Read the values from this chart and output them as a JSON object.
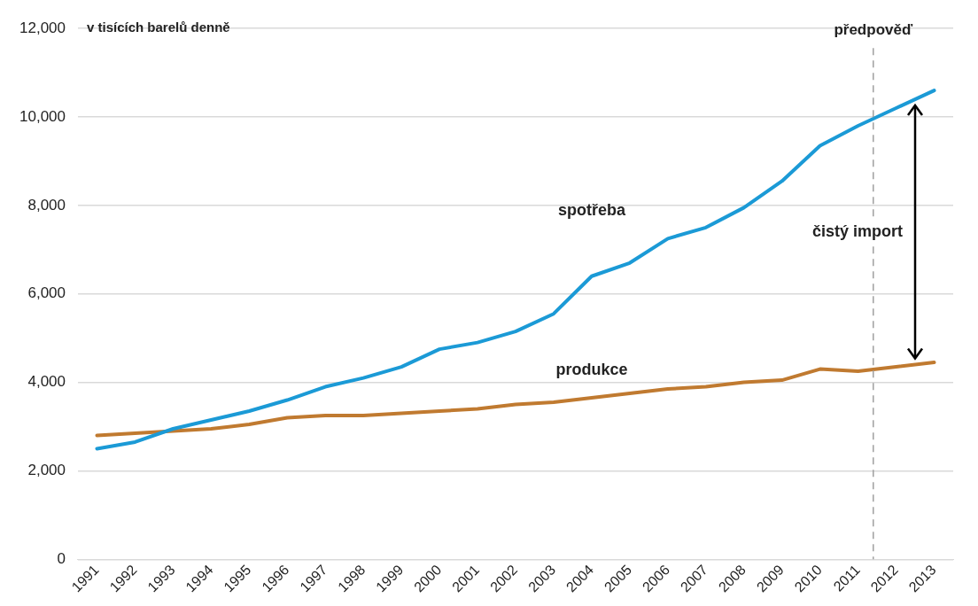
{
  "chart_data": {
    "type": "line",
    "ylabel": "v tisících barelů denně",
    "x": [
      1991,
      1992,
      1993,
      1994,
      1995,
      1996,
      1997,
      1998,
      1999,
      2000,
      2001,
      2002,
      2003,
      2004,
      2005,
      2006,
      2007,
      2008,
      2009,
      2010,
      2011,
      2012,
      2013
    ],
    "series": [
      {
        "name": "spotřeba",
        "color": "#1b9ad6",
        "values": [
          2500,
          2650,
          2950,
          3150,
          3350,
          3600,
          3900,
          4100,
          4350,
          4750,
          4900,
          5150,
          5550,
          6400,
          6700,
          7250,
          7500,
          7950,
          8550,
          9350,
          9800,
          10200,
          10600
        ]
      },
      {
        "name": "produkce",
        "color": "#c07a30",
        "values": [
          2800,
          2850,
          2900,
          2950,
          3050,
          3200,
          3250,
          3250,
          3300,
          3350,
          3400,
          3500,
          3550,
          3650,
          3750,
          3850,
          3900,
          4000,
          4050,
          4300,
          4250,
          4350,
          4450
        ]
      }
    ],
    "xlim": [
      1990.5,
      2013.5
    ],
    "xticks": [
      1991,
      1992,
      1993,
      1994,
      1995,
      1996,
      1997,
      1998,
      1999,
      2000,
      2001,
      2002,
      2003,
      2004,
      2005,
      2006,
      2007,
      2008,
      2009,
      2010,
      2011,
      2012,
      2013
    ],
    "ylim": [
      0,
      12000
    ],
    "yticks": [
      {
        "value": 0,
        "label": "0"
      },
      {
        "value": 2000,
        "label": "2,000"
      },
      {
        "value": 4000,
        "label": "4,000"
      },
      {
        "value": 6000,
        "label": "6,000"
      },
      {
        "value": 8000,
        "label": "8,000"
      },
      {
        "value": 10000,
        "label": "10,000"
      },
      {
        "value": 12000,
        "label": "12,000"
      }
    ],
    "grid": "y",
    "legend": false,
    "marker": "none",
    "line_style": "solid",
    "ref_lines": [
      {
        "axis": "x",
        "value": 2011.4,
        "label": "předpověď",
        "color": "#a0a0a0",
        "line_style": "dashed"
      }
    ],
    "annotations": [
      "čistý import"
    ]
  }
}
